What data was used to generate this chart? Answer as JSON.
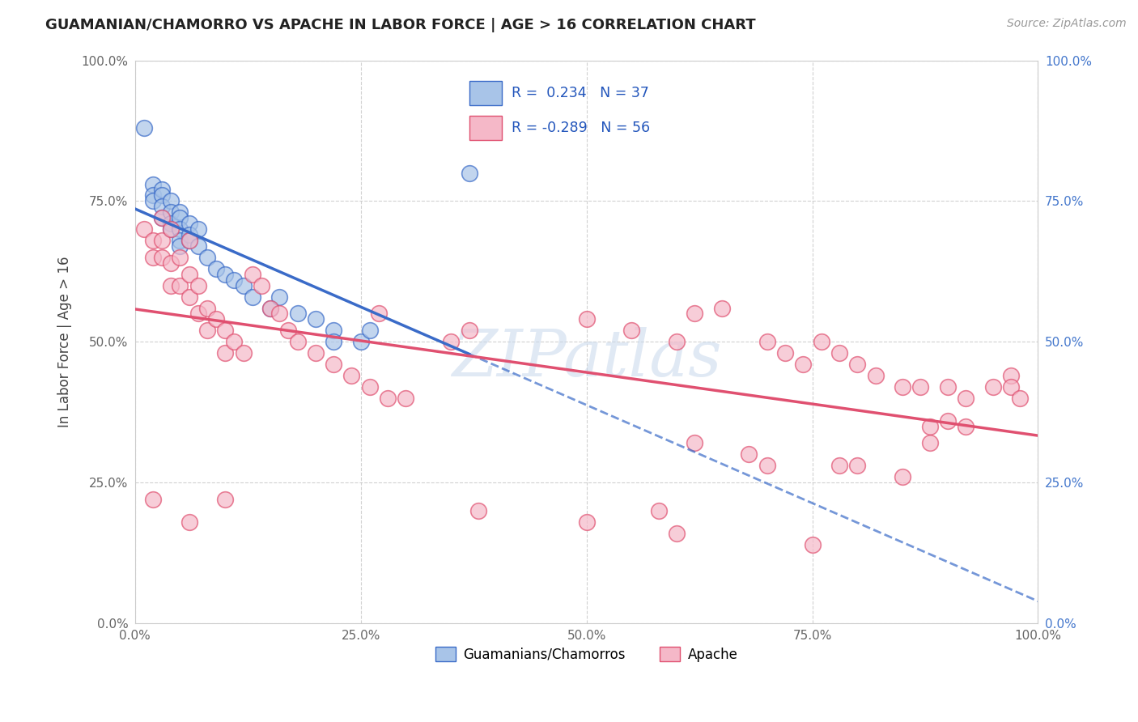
{
  "title": "GUAMANIAN/CHAMORRO VS APACHE IN LABOR FORCE | AGE > 16 CORRELATION CHART",
  "source": "Source: ZipAtlas.com",
  "ylabel": "In Labor Force | Age > 16",
  "xlim": [
    0.0,
    1.0
  ],
  "ylim": [
    0.0,
    1.0
  ],
  "xticks": [
    0.0,
    0.25,
    0.5,
    0.75,
    1.0
  ],
  "yticks": [
    0.0,
    0.25,
    0.5,
    0.75,
    1.0
  ],
  "xticklabels": [
    "0.0%",
    "25.0%",
    "50.0%",
    "75.0%",
    "100.0%"
  ],
  "yticklabels_left": [
    "0.0%",
    "25.0%",
    "50.0%",
    "75.0%",
    "100.0%"
  ],
  "yticklabels_right": [
    "0.0%",
    "25.0%",
    "50.0%",
    "75.0%",
    "100.0%"
  ],
  "legend_labels": [
    "Guamanians/Chamorros",
    "Apache"
  ],
  "blue_R": 0.234,
  "blue_N": 37,
  "pink_R": -0.289,
  "pink_N": 56,
  "blue_color": "#A8C4E8",
  "pink_color": "#F5B8C8",
  "blue_line_color": "#3A6BC8",
  "pink_line_color": "#E05070",
  "watermark": "ZIPatlas",
  "background_color": "#ffffff",
  "grid_color": "#cccccc",
  "blue_scatter_x": [
    0.01,
    0.02,
    0.02,
    0.02,
    0.03,
    0.03,
    0.03,
    0.03,
    0.04,
    0.04,
    0.04,
    0.04,
    0.05,
    0.05,
    0.05,
    0.05,
    0.05,
    0.06,
    0.06,
    0.06,
    0.07,
    0.07,
    0.08,
    0.09,
    0.1,
    0.11,
    0.12,
    0.13,
    0.15,
    0.16,
    0.18,
    0.2,
    0.22,
    0.22,
    0.25,
    0.26,
    0.37
  ],
  "blue_scatter_y": [
    0.88,
    0.78,
    0.76,
    0.75,
    0.77,
    0.76,
    0.74,
    0.72,
    0.75,
    0.73,
    0.71,
    0.7,
    0.73,
    0.72,
    0.7,
    0.68,
    0.67,
    0.71,
    0.69,
    0.68,
    0.7,
    0.67,
    0.65,
    0.63,
    0.62,
    0.61,
    0.6,
    0.58,
    0.56,
    0.58,
    0.55,
    0.54,
    0.52,
    0.5,
    0.5,
    0.52,
    0.8
  ],
  "pink_scatter_x": [
    0.01,
    0.02,
    0.02,
    0.03,
    0.03,
    0.03,
    0.04,
    0.04,
    0.04,
    0.05,
    0.05,
    0.06,
    0.06,
    0.06,
    0.07,
    0.07,
    0.08,
    0.08,
    0.09,
    0.1,
    0.1,
    0.11,
    0.12,
    0.13,
    0.14,
    0.15,
    0.16,
    0.17,
    0.18,
    0.2,
    0.22,
    0.24,
    0.26,
    0.27,
    0.28,
    0.3,
    0.35,
    0.37,
    0.5,
    0.55,
    0.6,
    0.62,
    0.65,
    0.7,
    0.72,
    0.74,
    0.76,
    0.78,
    0.8,
    0.82,
    0.85,
    0.87,
    0.88,
    0.9,
    0.92,
    0.97
  ],
  "pink_scatter_y": [
    0.7,
    0.68,
    0.65,
    0.72,
    0.68,
    0.65,
    0.7,
    0.64,
    0.6,
    0.65,
    0.6,
    0.68,
    0.62,
    0.58,
    0.6,
    0.55,
    0.56,
    0.52,
    0.54,
    0.52,
    0.48,
    0.5,
    0.48,
    0.62,
    0.6,
    0.56,
    0.55,
    0.52,
    0.5,
    0.48,
    0.46,
    0.44,
    0.42,
    0.55,
    0.4,
    0.4,
    0.5,
    0.52,
    0.54,
    0.52,
    0.5,
    0.55,
    0.56,
    0.5,
    0.48,
    0.46,
    0.5,
    0.48,
    0.46,
    0.44,
    0.42,
    0.42,
    0.35,
    0.42,
    0.4,
    0.44
  ],
  "pink_scatter_x2": [
    0.02,
    0.06,
    0.1,
    0.38,
    0.5,
    0.58,
    0.62,
    0.68,
    0.7,
    0.75,
    0.78,
    0.8,
    0.85,
    0.88,
    0.9,
    0.92,
    0.95,
    0.97,
    0.98,
    0.6
  ],
  "pink_scatter_y2": [
    0.22,
    0.18,
    0.22,
    0.2,
    0.18,
    0.2,
    0.32,
    0.3,
    0.28,
    0.14,
    0.28,
    0.28,
    0.26,
    0.32,
    0.36,
    0.35,
    0.42,
    0.42,
    0.4,
    0.16
  ]
}
